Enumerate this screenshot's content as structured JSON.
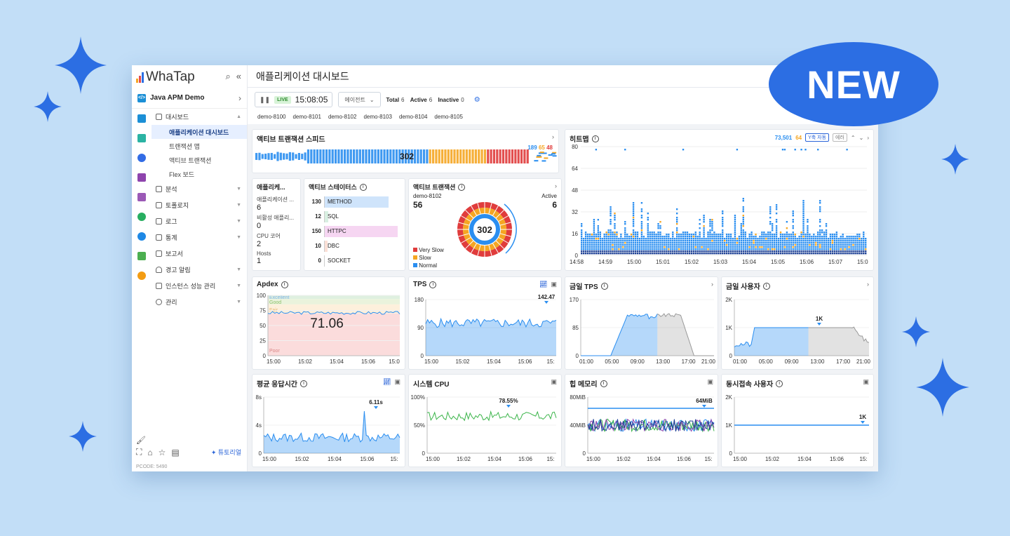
{
  "brand": {
    "name": "WhaTap"
  },
  "badge": {
    "label": "NEW"
  },
  "colors": {
    "accent": "#2c6ee3",
    "normal": "#2a8ef0",
    "slow": "#f5a623",
    "very_slow": "#e03c3c"
  },
  "sidebar": {
    "project": "Java APM Demo",
    "menu": [
      {
        "label": "대시보드",
        "expanded": true,
        "children": [
          "애플리케이션 대시보드",
          "트랜잭션 맵",
          "액티브 트랜잭션",
          "Flex 보드"
        ]
      },
      {
        "label": "분석"
      },
      {
        "label": "토폴로지"
      },
      {
        "label": "로그"
      },
      {
        "label": "통계"
      },
      {
        "label": "보고서"
      },
      {
        "label": "경고 알림"
      },
      {
        "label": "인스턴스 성능 관리"
      },
      {
        "label": "관리"
      }
    ],
    "tutorial": "튜토리얼",
    "pcode": "PCODE: 5490"
  },
  "page": {
    "title": "애플리케이션 대시보드"
  },
  "controls": {
    "live_label": "LIVE",
    "time": "15:08:05",
    "agent_select": "에이전트",
    "total_label": "Total",
    "total": "6",
    "active_label": "Active",
    "active": "6",
    "inactive_label": "Inactive",
    "inactive": "0",
    "agents": [
      "demo-8100",
      "demo-8101",
      "demo-8102",
      "demo-8103",
      "demo-8104",
      "demo-8105"
    ]
  },
  "speed": {
    "title": "액티브 트랜잭션 스피드",
    "count": "302",
    "normal": "189",
    "slow": "65",
    "very_slow": "48"
  },
  "app_panel": {
    "title": "애플리케...",
    "stats": [
      {
        "label": "애플리케이션 ...",
        "value": "6"
      },
      {
        "label": "비활성 애플리...",
        "value": "0"
      },
      {
        "label": "CPU 코어",
        "value": "2"
      },
      {
        "label": "Hosts",
        "value": "1"
      }
    ]
  },
  "status_panel": {
    "title": "액티브 스테이터스",
    "rows": [
      {
        "count": "130",
        "label": "METHOD",
        "color": "#cfe4fb",
        "frac": 0.85
      },
      {
        "count": "12",
        "label": "SQL",
        "color": "#d9f0e2",
        "frac": 0.05
      },
      {
        "count": "150",
        "label": "HTTPC",
        "color": "#f6d6f2",
        "frac": 0.97
      },
      {
        "count": "10",
        "label": "DBC",
        "color": "#fbe0d6",
        "frac": 0.04
      },
      {
        "count": "0",
        "label": "SOCKET",
        "color": "#eeeeee",
        "frac": 0
      }
    ]
  },
  "active_panel": {
    "title": "액티브 트랜잭션",
    "agent": "demo-8102",
    "agent_value": "56",
    "active_label": "Active",
    "active_value": "6",
    "center": "302",
    "legend": [
      "Very Slow",
      "Slow",
      "Normal"
    ]
  },
  "heatmap": {
    "title": "히트맵",
    "count_a": "73,501",
    "count_b": "64",
    "chip": "Y축 자동",
    "err": "에러",
    "y_ticks": [
      "80",
      "64",
      "48",
      "32",
      "16",
      "0"
    ],
    "x_ticks": [
      "14:58",
      "14:59",
      "15:00",
      "15:01",
      "15:02",
      "15:03",
      "15:04",
      "15:05",
      "15:06",
      "15:07",
      "15:0"
    ]
  },
  "charts": {
    "apdex": {
      "title": "Apdex",
      "value": "71.06",
      "y_ticks": [
        "100",
        "75",
        "50",
        "25",
        "0"
      ],
      "bands": [
        "Excellent",
        "Good",
        "Fair",
        "Poor"
      ],
      "x_ticks": [
        "15:00",
        "15:02",
        "15:04",
        "15:06",
        "15:0"
      ]
    },
    "tps": {
      "title": "TPS",
      "y_ticks": [
        "180",
        "90",
        "0"
      ],
      "x_ticks": [
        "15:00",
        "15:02",
        "15:04",
        "15:06",
        "15:"
      ],
      "peak": "142.47"
    },
    "today_tps": {
      "title": "금일 TPS",
      "y_ticks": [
        "170",
        "85",
        "0"
      ],
      "x_ticks": [
        "01:00",
        "05:00",
        "09:00",
        "13:00",
        "17:00",
        "21:00"
      ]
    },
    "today_users": {
      "title": "금일 사용자",
      "y_ticks": [
        "2K",
        "1K",
        "0"
      ],
      "x_ticks": [
        "01:00",
        "05:00",
        "09:00",
        "13:00",
        "17:00",
        "21:00"
      ],
      "peak": "1K"
    },
    "resp": {
      "title": "평균 응답시간",
      "y_ticks": [
        "8s",
        "4s",
        "0"
      ],
      "x_ticks": [
        "15:00",
        "15:02",
        "15:04",
        "15:06",
        "15:"
      ],
      "peak": "6.11s"
    },
    "cpu": {
      "title": "시스템 CPU",
      "y_ticks": [
        "100%",
        "50%",
        "0"
      ],
      "x_ticks": [
        "15:00",
        "15:02",
        "15:04",
        "15:06",
        "15:"
      ],
      "peak": "78.55%"
    },
    "heap": {
      "title": "힙 메모리",
      "y_ticks": [
        "80MiB",
        "40MiB",
        "0"
      ],
      "x_ticks": [
        "15:00",
        "15:02",
        "15:04",
        "15:06",
        "15:"
      ],
      "peak": "64MiB"
    },
    "concurrent": {
      "title": "동시접속 사용자",
      "y_ticks": [
        "2K",
        "1K",
        "0"
      ],
      "x_ticks": [
        "15:00",
        "15:02",
        "15:04",
        "15:06",
        "15:"
      ],
      "peak": "1K"
    }
  }
}
